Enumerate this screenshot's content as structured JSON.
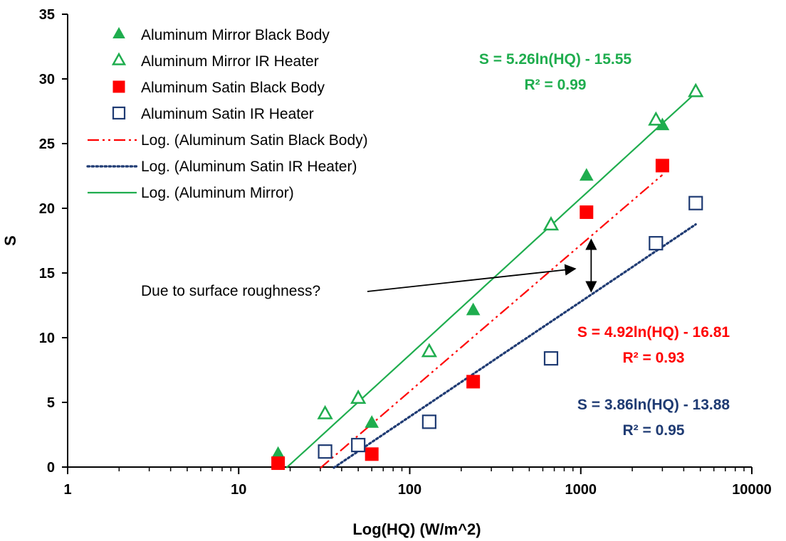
{
  "chart_data": {
    "type": "scatter",
    "title": "",
    "xlabel": "Log(HQ) (W/m^2)",
    "ylabel": "S",
    "x_scale": "log",
    "xlim": [
      1,
      10000
    ],
    "ylim": [
      0,
      35
    ],
    "x_ticks": [
      "1",
      "10",
      "100",
      "1000",
      "10000"
    ],
    "y_ticks": [
      "0",
      "5",
      "10",
      "15",
      "20",
      "25",
      "30",
      "35"
    ],
    "grid": false,
    "legend_position": "top-left",
    "series": [
      {
        "name": "Aluminum Mirror Black Body",
        "marker": "triangle-filled",
        "color": "#1fad4e",
        "points": [
          [
            17,
            1.0
          ],
          [
            60,
            3.4
          ],
          [
            235,
            12.1
          ],
          [
            1080,
            22.5
          ],
          [
            3000,
            26.4
          ]
        ]
      },
      {
        "name": "Aluminum Mirror IR Heater",
        "marker": "triangle-open",
        "color": "#1fad4e",
        "points": [
          [
            32,
            4.1
          ],
          [
            50,
            5.3
          ],
          [
            130,
            8.9
          ],
          [
            670,
            18.7
          ],
          [
            2750,
            26.8
          ],
          [
            4700,
            29.0
          ]
        ]
      },
      {
        "name": "Aluminum Satin Black Body",
        "marker": "square-filled",
        "color": "#ff0000",
        "points": [
          [
            17,
            0.3
          ],
          [
            60,
            1.0
          ],
          [
            235,
            6.6
          ],
          [
            1080,
            19.7
          ],
          [
            3000,
            23.3
          ]
        ]
      },
      {
        "name": "Aluminum Satin IR Heater",
        "marker": "square-open",
        "color": "#1f3b73",
        "points": [
          [
            32,
            1.2
          ],
          [
            50,
            1.7
          ],
          [
            130,
            3.5
          ],
          [
            670,
            8.4
          ],
          [
            2750,
            17.3
          ],
          [
            4700,
            20.4
          ]
        ]
      }
    ],
    "trendlines": [
      {
        "name": "Log. (Aluminum Satin Black Body)",
        "style": "dash-dot-dot",
        "color": "#ff0000",
        "a": 4.92,
        "b": -16.81,
        "x_range": [
          30,
          3000
        ],
        "equation": "S = 4.92ln(HQ) - 16.81",
        "r2": "R² = 0.93"
      },
      {
        "name": "Log. (Aluminum Satin IR Heater)",
        "style": "dotted",
        "color": "#1f3b73",
        "a": 3.86,
        "b": -13.88,
        "x_range": [
          36,
          4700
        ],
        "equation": "S = 3.86ln(HQ) - 13.88",
        "r2": "R² = 0.95"
      },
      {
        "name": "Log. (Aluminum Mirror)",
        "style": "solid",
        "color": "#1fad4e",
        "a": 5.26,
        "b": -15.55,
        "x_range": [
          19,
          4700
        ],
        "equation": "S = 5.26ln(HQ) - 15.55",
        "r2": "R² = 0.99"
      }
    ],
    "annotations": [
      {
        "text": "Due to surface roughness?",
        "arrow_to": [
          1150,
          15.0
        ]
      }
    ]
  }
}
